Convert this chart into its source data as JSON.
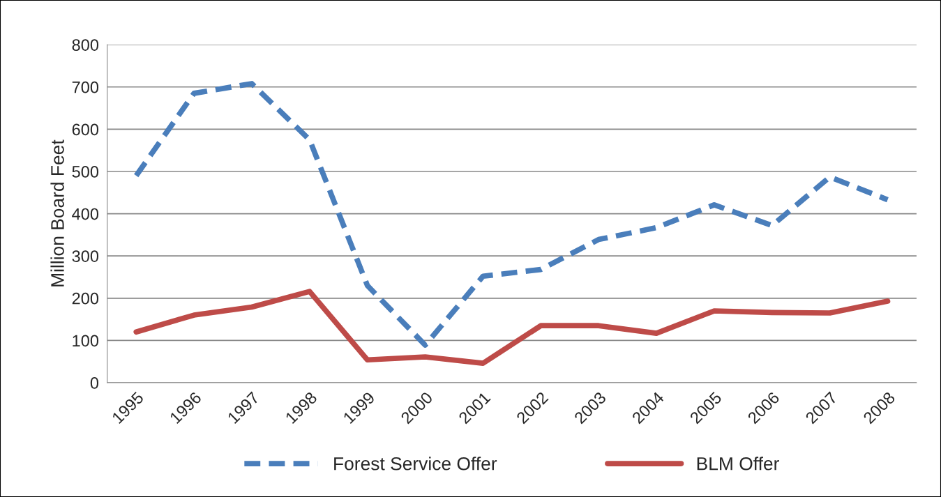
{
  "chart_data": {
    "type": "line",
    "ylabel": "Million Board Feet",
    "categories": [
      "1995",
      "1996",
      "1997",
      "1998",
      "1999",
      "2000",
      "2001",
      "2002",
      "2003",
      "2004",
      "2005",
      "2006",
      "2007",
      "2008"
    ],
    "series": [
      {
        "name": "Forest Service Offer",
        "color": "#4a7ebb",
        "line_style": "dashed",
        "values": [
          490,
          685,
          708,
          575,
          230,
          89,
          252,
          268,
          339,
          367,
          421,
          372,
          487,
          433
        ]
      },
      {
        "name": "BLM Offer",
        "color": "#be4b48",
        "line_style": "solid",
        "values": [
          120,
          160,
          179,
          216,
          54,
          61,
          46,
          135,
          135,
          117,
          170,
          166,
          165,
          193
        ]
      }
    ],
    "ylim": [
      0,
      800
    ],
    "yticks": [
      0,
      100,
      200,
      300,
      400,
      500,
      600,
      700,
      800
    ],
    "grid": "y",
    "legend": "bottom",
    "marker": "none"
  }
}
